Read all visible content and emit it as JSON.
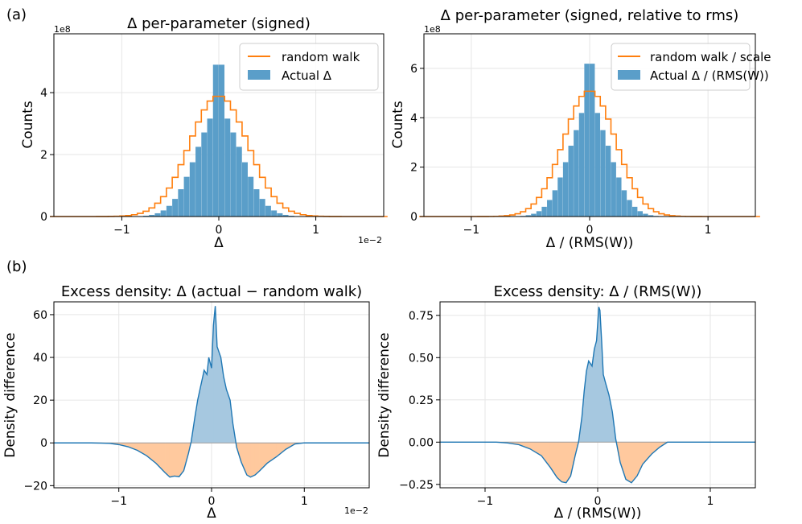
{
  "panel_labels": {
    "a": "(a)",
    "b": "(b)"
  },
  "colors": {
    "hist": "#5a9ec9",
    "orange": "#ff7f0e",
    "line": "#1f77b4",
    "pos_fill": "#a6c8e0",
    "neg_fill": "#ffc99e",
    "grid": "#e6e6e6"
  },
  "chart_data": [
    {
      "id": "a1",
      "type": "bar",
      "title": "Δ per-parameter (signed)",
      "xlabel": "Δ",
      "ylabel": "Counts",
      "y_multiplier": "1e8",
      "x_multiplier": "1e−2",
      "xlim": [
        -1.7,
        1.7
      ],
      "ylim": [
        0,
        5.9
      ],
      "xticks": [
        -1,
        0,
        1
      ],
      "xticklabels": [
        "−1",
        "0",
        "1"
      ],
      "yticks": [
        0,
        2,
        4
      ],
      "yticklabels": [
        "0",
        "2",
        "4"
      ],
      "legend_location": "top-right",
      "series": [
        {
          "name": "random walk",
          "kind": "step",
          "shape": "gaussian",
          "amplitude": 3.9,
          "sigma": 0.3
        },
        {
          "name": "Actual Δ",
          "kind": "histogram",
          "shape": "peaked",
          "amplitude": 3.3,
          "sigma": 0.24,
          "peak_extra": 2.35,
          "peak_width": 0.035
        }
      ],
      "bin_width": 0.06
    },
    {
      "id": "a2",
      "type": "bar",
      "title": "Δ per-parameter (signed, relative to rms)",
      "xlabel": "Δ / (RMS(W))",
      "ylabel": "Counts",
      "y_multiplier": "1e8",
      "xlim": [
        -1.4,
        1.4
      ],
      "ylim": [
        0,
        7.4
      ],
      "xticks": [
        -1,
        0,
        1
      ],
      "xticklabels": [
        "−1",
        "0",
        "1"
      ],
      "yticks": [
        0,
        2,
        4,
        6
      ],
      "yticklabels": [
        "0",
        "2",
        "4",
        "6"
      ],
      "legend_location": "top-right",
      "series": [
        {
          "name": "random walk / scale",
          "kind": "step",
          "shape": "gaussian",
          "amplitude": 5.1,
          "sigma": 0.22
        },
        {
          "name": "Actual Δ / (RMS(W))",
          "kind": "histogram",
          "shape": "peaked",
          "amplitude": 4.3,
          "sigma": 0.175,
          "peak_extra": 2.55,
          "peak_width": 0.03
        }
      ],
      "bin_width": 0.045
    },
    {
      "id": "b1",
      "type": "area",
      "title": "Excess density: Δ (actual − random walk)",
      "xlabel": "Δ",
      "ylabel": "Density difference",
      "x_multiplier": "1e−2",
      "xlim": [
        -1.7,
        1.7
      ],
      "ylim": [
        -21,
        66
      ],
      "xticks": [
        -1,
        0,
        1
      ],
      "xticklabels": [
        "−1",
        "0",
        "1"
      ],
      "yticks": [
        -20,
        0,
        20,
        40,
        60
      ],
      "yticklabels": [
        "−20",
        "0",
        "20",
        "40",
        "60"
      ],
      "series": [
        {
          "name": "density difference",
          "x": [
            -1.7,
            -1.3,
            -1.1,
            -1.0,
            -0.9,
            -0.8,
            -0.7,
            -0.6,
            -0.5,
            -0.45,
            -0.4,
            -0.35,
            -0.3,
            -0.25,
            -0.22,
            -0.18,
            -0.15,
            -0.12,
            -0.1,
            -0.08,
            -0.05,
            -0.03,
            0.0,
            0.02,
            0.04,
            0.06,
            0.1,
            0.13,
            0.16,
            0.2,
            0.23,
            0.27,
            0.32,
            0.38,
            0.42,
            0.47,
            0.52,
            0.6,
            0.7,
            0.8,
            0.9,
            1.0,
            1.1,
            1.3,
            1.7
          ],
          "y": [
            0,
            0,
            -0.2,
            -0.8,
            -1.8,
            -3.5,
            -6.0,
            -9.5,
            -14.0,
            -16.0,
            -15.5,
            -15.8,
            -13.0,
            -5.0,
            0.5,
            12.0,
            20.0,
            26.0,
            30.0,
            34.0,
            32.0,
            40.0,
            35.0,
            55.0,
            64.0,
            45.0,
            40.0,
            31.0,
            25.0,
            20.0,
            9.0,
            -2.0,
            -9.0,
            -15.0,
            -16.0,
            -15.0,
            -13.0,
            -9.5,
            -6.5,
            -3.0,
            -0.5,
            0,
            0,
            0,
            0
          ]
        }
      ]
    },
    {
      "id": "b2",
      "type": "area",
      "title": "Excess density: Δ / (RMS(W))",
      "xlabel": "Δ / (RMS(W))",
      "ylabel": "Density difference",
      "xlim": [
        -1.4,
        1.4
      ],
      "ylim": [
        -0.27,
        0.83
      ],
      "xticks": [
        -1,
        0,
        1
      ],
      "xticklabels": [
        "−1",
        "0",
        "1"
      ],
      "yticks": [
        -0.25,
        0,
        0.25,
        0.5,
        0.75
      ],
      "yticklabels": [
        "−0.25",
        "0.00",
        "0.25",
        "0.50",
        "0.75"
      ],
      "series": [
        {
          "name": "density difference",
          "x": [
            -1.4,
            -0.9,
            -0.8,
            -0.7,
            -0.6,
            -0.5,
            -0.42,
            -0.36,
            -0.32,
            -0.28,
            -0.24,
            -0.2,
            -0.17,
            -0.14,
            -0.12,
            -0.1,
            -0.08,
            -0.05,
            -0.03,
            -0.01,
            0.01,
            0.02,
            0.035,
            0.05,
            0.07,
            0.1,
            0.13,
            0.16,
            0.2,
            0.25,
            0.3,
            0.35,
            0.4,
            0.48,
            0.55,
            0.62,
            0.7,
            1.0,
            1.4
          ],
          "y": [
            0,
            0,
            -0.005,
            -0.015,
            -0.04,
            -0.08,
            -0.15,
            -0.21,
            -0.235,
            -0.24,
            -0.2,
            -0.08,
            0.0,
            0.15,
            0.3,
            0.42,
            0.48,
            0.45,
            0.55,
            0.6,
            0.8,
            0.78,
            0.6,
            0.4,
            0.35,
            0.28,
            0.18,
            0.02,
            -0.12,
            -0.22,
            -0.24,
            -0.2,
            -0.13,
            -0.07,
            -0.03,
            0.0,
            0,
            0,
            0
          ]
        }
      ]
    }
  ]
}
